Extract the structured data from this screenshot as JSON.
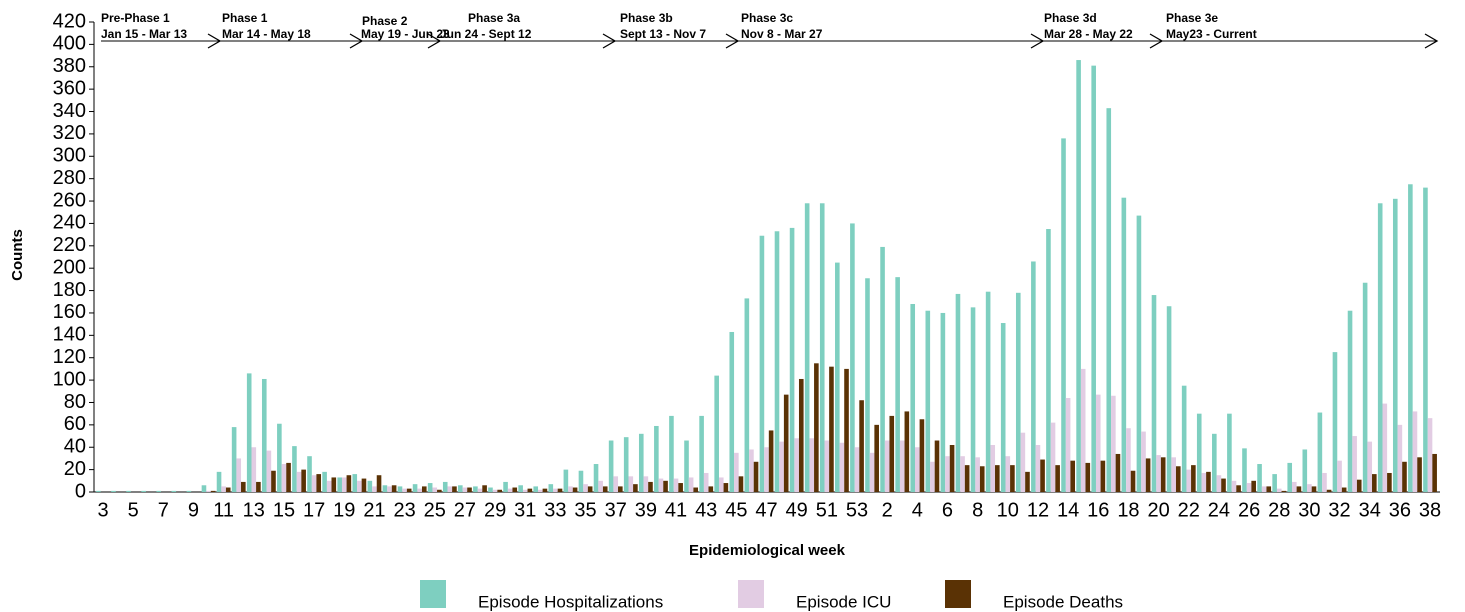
{
  "chart_data": {
    "type": "bar",
    "x_label": "Epidemiological week",
    "y_label": "Counts",
    "categories": [
      "3",
      null,
      "5",
      null,
      "7",
      null,
      "9",
      null,
      "11",
      null,
      "13",
      null,
      "15",
      null,
      "17",
      null,
      "19",
      null,
      "21",
      null,
      "23",
      null,
      "25",
      null,
      "27",
      null,
      "29",
      null,
      "31",
      null,
      "33",
      null,
      "35",
      null,
      "37",
      null,
      "39",
      null,
      "41",
      null,
      "43",
      null,
      "45",
      null,
      "47",
      null,
      "49",
      null,
      "51",
      null,
      "53",
      null,
      "2",
      null,
      "4",
      null,
      "6",
      null,
      "8",
      null,
      "10",
      null,
      "12",
      null,
      "14",
      null,
      "16",
      null,
      "18",
      null,
      "20",
      null,
      "22",
      null,
      "24",
      null,
      "26",
      null,
      "28",
      null,
      "30",
      null,
      "32",
      null,
      "34",
      null,
      "36",
      null,
      "38"
    ],
    "series": [
      {
        "name": "Episode Hospitalizations",
        "color": "#7ecfc0",
        "values": [
          1,
          1,
          1,
          1,
          1,
          1,
          1,
          6,
          18,
          58,
          106,
          101,
          61,
          41,
          32,
          18,
          13,
          16,
          10,
          6,
          5,
          7,
          8,
          9,
          6,
          5,
          4,
          9,
          6,
          5,
          7,
          20,
          19,
          25,
          46,
          49,
          52,
          59,
          68,
          46,
          68,
          104,
          143,
          173,
          229,
          233,
          236,
          258,
          258,
          205,
          240,
          191,
          219,
          192,
          168,
          162,
          160,
          177,
          165,
          179,
          151,
          178,
          206,
          235,
          316,
          386,
          381,
          343,
          263,
          247,
          176,
          166,
          95,
          70,
          52,
          70,
          39,
          25,
          16,
          26,
          38,
          71,
          125,
          162,
          187,
          258,
          262,
          275,
          272
        ]
      },
      {
        "name": "Episode ICU",
        "color": "#e2cce3",
        "values": [
          0,
          0,
          0,
          0,
          0,
          0,
          0,
          1,
          5,
          30,
          40,
          37,
          25,
          18,
          15,
          10,
          13,
          10,
          5,
          5,
          3,
          3,
          4,
          5,
          4,
          3,
          2,
          3,
          2,
          2,
          3,
          5,
          7,
          10,
          14,
          14,
          14,
          12,
          12,
          13,
          17,
          13,
          35,
          38,
          40,
          45,
          48,
          48,
          46,
          44,
          40,
          35,
          46,
          46,
          40,
          27,
          32,
          32,
          31,
          42,
          32,
          53,
          42,
          62,
          84,
          110,
          87,
          86,
          57,
          54,
          33,
          31,
          20,
          17,
          15,
          10,
          8,
          5,
          3,
          9,
          7,
          17,
          28,
          50,
          45,
          79,
          60,
          72,
          66
        ]
      },
      {
        "name": "Episode Deaths",
        "color": "#5a3205",
        "values": [
          0,
          0,
          0,
          0,
          0,
          0,
          0,
          1,
          4,
          9,
          9,
          19,
          26,
          20,
          16,
          13,
          15,
          12,
          15,
          6,
          3,
          5,
          2,
          5,
          4,
          6,
          2,
          4,
          3,
          3,
          3,
          4,
          5,
          5,
          5,
          7,
          9,
          10,
          8,
          4,
          5,
          8,
          14,
          27,
          55,
          87,
          101,
          115,
          112,
          110,
          82,
          60,
          68,
          72,
          65,
          46,
          42,
          24,
          23,
          24,
          24,
          18,
          29,
          24,
          28,
          26,
          28,
          34,
          19,
          30,
          31,
          23,
          24,
          18,
          12,
          6,
          10,
          5,
          1,
          5,
          5,
          2,
          4,
          11,
          16,
          17,
          27,
          31,
          34
        ]
      }
    ],
    "ylim": [
      0,
      420
    ],
    "yticks": [
      0,
      20,
      40,
      60,
      80,
      100,
      120,
      140,
      160,
      180,
      200,
      220,
      240,
      260,
      280,
      300,
      320,
      340,
      360,
      380,
      400,
      420
    ],
    "annotations": [
      {
        "label": "Pre-Phase 1",
        "dates": "Jan 15 - Mar 13"
      },
      {
        "label": "Phase 1",
        "dates": "Mar 14 - May 18"
      },
      {
        "label": "Phase 2",
        "dates": "May 19 - Jun 23"
      },
      {
        "label": "Phase 3a",
        "dates": "Jun 24 - Sept 12"
      },
      {
        "label": "Phase 3b",
        "dates": "Sept 13 - Nov 7"
      },
      {
        "label": "Phase 3c",
        "dates": "Nov 8 - Mar 27"
      },
      {
        "label": "Phase 3d",
        "dates": "Mar 28 - May 22"
      },
      {
        "label": "Phase 3e",
        "dates": "May23 - Current"
      }
    ]
  }
}
